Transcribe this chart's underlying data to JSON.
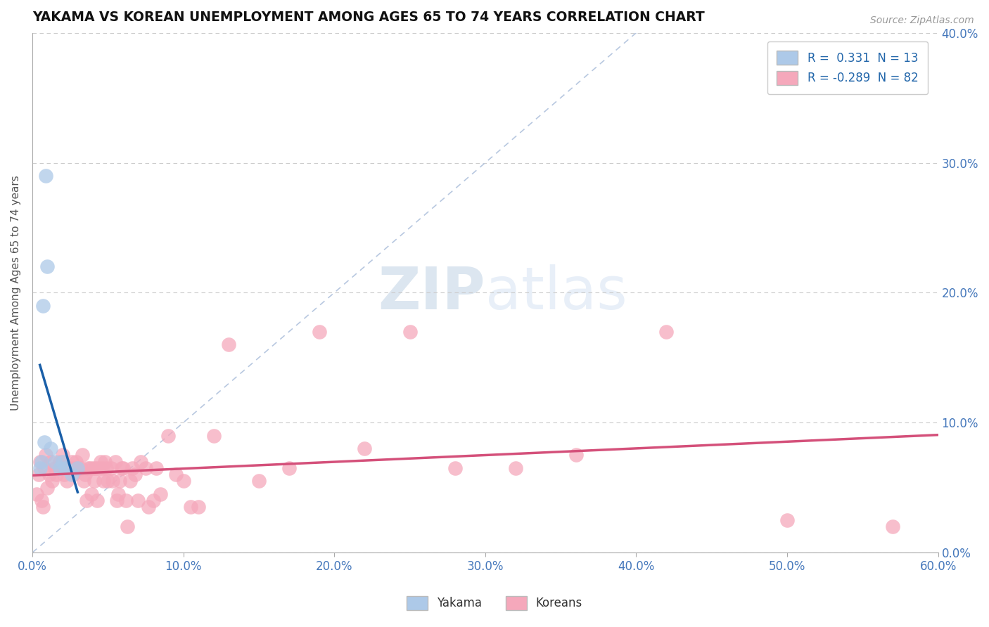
{
  "title": "YAKAMA VS KOREAN UNEMPLOYMENT AMONG AGES 65 TO 74 YEARS CORRELATION CHART",
  "source": "Source: ZipAtlas.com",
  "xmin": 0.0,
  "xmax": 0.6,
  "ymin": 0.0,
  "ymax": 0.4,
  "yakama_R": 0.331,
  "yakama_N": 13,
  "korean_R": -0.289,
  "korean_N": 82,
  "yakama_color": "#adc9e8",
  "korean_color": "#f5a8bb",
  "yakama_trend_color": "#1a5fa8",
  "korean_trend_color": "#d4507a",
  "legend_label_yakama": "Yakama",
  "legend_label_korean": "Koreans",
  "watermark_zip": "ZIP",
  "watermark_atlas": "atlas",
  "background_color": "#ffffff",
  "yakama_x": [
    0.005,
    0.006,
    0.007,
    0.008,
    0.009,
    0.01,
    0.012,
    0.015,
    0.018,
    0.02,
    0.022,
    0.026,
    0.03
  ],
  "yakama_y": [
    0.065,
    0.07,
    0.19,
    0.085,
    0.29,
    0.22,
    0.08,
    0.07,
    0.065,
    0.07,
    0.065,
    0.06,
    0.065
  ],
  "korean_x": [
    0.003,
    0.004,
    0.005,
    0.006,
    0.007,
    0.008,
    0.009,
    0.01,
    0.011,
    0.012,
    0.013,
    0.015,
    0.016,
    0.018,
    0.019,
    0.02,
    0.021,
    0.022,
    0.023,
    0.025,
    0.026,
    0.027,
    0.028,
    0.029,
    0.03,
    0.032,
    0.033,
    0.034,
    0.035,
    0.036,
    0.037,
    0.038,
    0.039,
    0.04,
    0.041,
    0.042,
    0.043,
    0.044,
    0.045,
    0.046,
    0.047,
    0.048,
    0.049,
    0.05,
    0.052,
    0.053,
    0.055,
    0.056,
    0.057,
    0.058,
    0.059,
    0.06,
    0.062,
    0.063,
    0.065,
    0.066,
    0.068,
    0.07,
    0.072,
    0.075,
    0.077,
    0.08,
    0.082,
    0.085,
    0.09,
    0.095,
    0.1,
    0.105,
    0.11,
    0.12,
    0.13,
    0.15,
    0.17,
    0.19,
    0.22,
    0.25,
    0.28,
    0.32,
    0.36,
    0.42,
    0.5,
    0.57
  ],
  "korean_y": [
    0.045,
    0.06,
    0.07,
    0.04,
    0.035,
    0.065,
    0.075,
    0.05,
    0.06,
    0.07,
    0.055,
    0.065,
    0.06,
    0.07,
    0.065,
    0.075,
    0.06,
    0.065,
    0.055,
    0.065,
    0.07,
    0.06,
    0.065,
    0.07,
    0.065,
    0.065,
    0.075,
    0.055,
    0.06,
    0.04,
    0.065,
    0.065,
    0.045,
    0.065,
    0.055,
    0.065,
    0.04,
    0.065,
    0.07,
    0.065,
    0.055,
    0.07,
    0.065,
    0.055,
    0.065,
    0.055,
    0.07,
    0.04,
    0.045,
    0.055,
    0.065,
    0.065,
    0.04,
    0.02,
    0.055,
    0.065,
    0.06,
    0.04,
    0.07,
    0.065,
    0.035,
    0.04,
    0.065,
    0.045,
    0.09,
    0.06,
    0.055,
    0.035,
    0.035,
    0.09,
    0.16,
    0.055,
    0.065,
    0.17,
    0.08,
    0.17,
    0.065,
    0.065,
    0.075,
    0.17,
    0.025,
    0.02
  ]
}
